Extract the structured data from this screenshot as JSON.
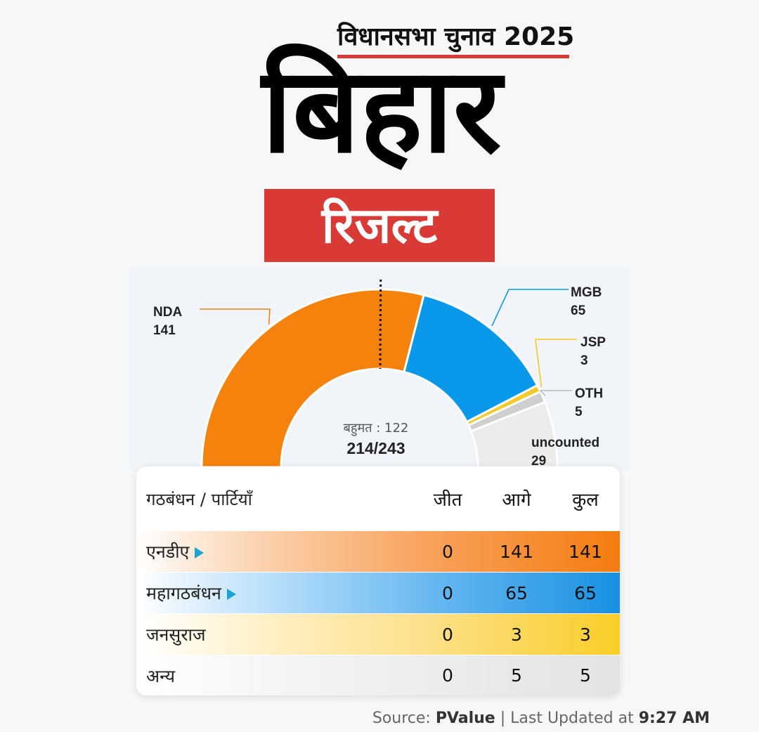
{
  "header": {
    "subtitle": "विधानसभा चुनाव 2025",
    "title": "बिहार",
    "badge": "रिजल्ट"
  },
  "chart_data": {
    "type": "pie",
    "style": "semi-donut",
    "total_label": "214/243",
    "majority_label": "बहुमत : 122",
    "majority_value": 122,
    "total_seats": 243,
    "counted": 214,
    "slices": [
      {
        "label": "NDA",
        "value": 141,
        "color": "#f5820d"
      },
      {
        "label": "MGB",
        "value": 65,
        "color": "#0a99ea"
      },
      {
        "label": "JSP",
        "value": 3,
        "color": "#f5c927"
      },
      {
        "label": "OTH",
        "value": 5,
        "color": "#cfcfcf"
      },
      {
        "label": "uncounted",
        "value": 29,
        "color": "#ececec"
      }
    ]
  },
  "table": {
    "headers": {
      "name": "गठबंधन / पार्टियाँ",
      "won": "जीत",
      "leading": "आगे",
      "total": "कुल"
    },
    "rows": [
      {
        "name": "एनडीए",
        "won": "0",
        "leading": "141",
        "total": "141"
      },
      {
        "name": "महागठबंधन",
        "won": "0",
        "leading": "65",
        "total": "65"
      },
      {
        "name": "जनसुराज",
        "won": "0",
        "leading": "3",
        "total": "3"
      },
      {
        "name": "अन्य",
        "won": "0",
        "leading": "5",
        "total": "5"
      }
    ]
  },
  "footer": {
    "source_prefix": "Source: ",
    "source_name": "PValue",
    "updated_prefix": " | Last Updated at ",
    "updated_time": "9:27 AM"
  }
}
